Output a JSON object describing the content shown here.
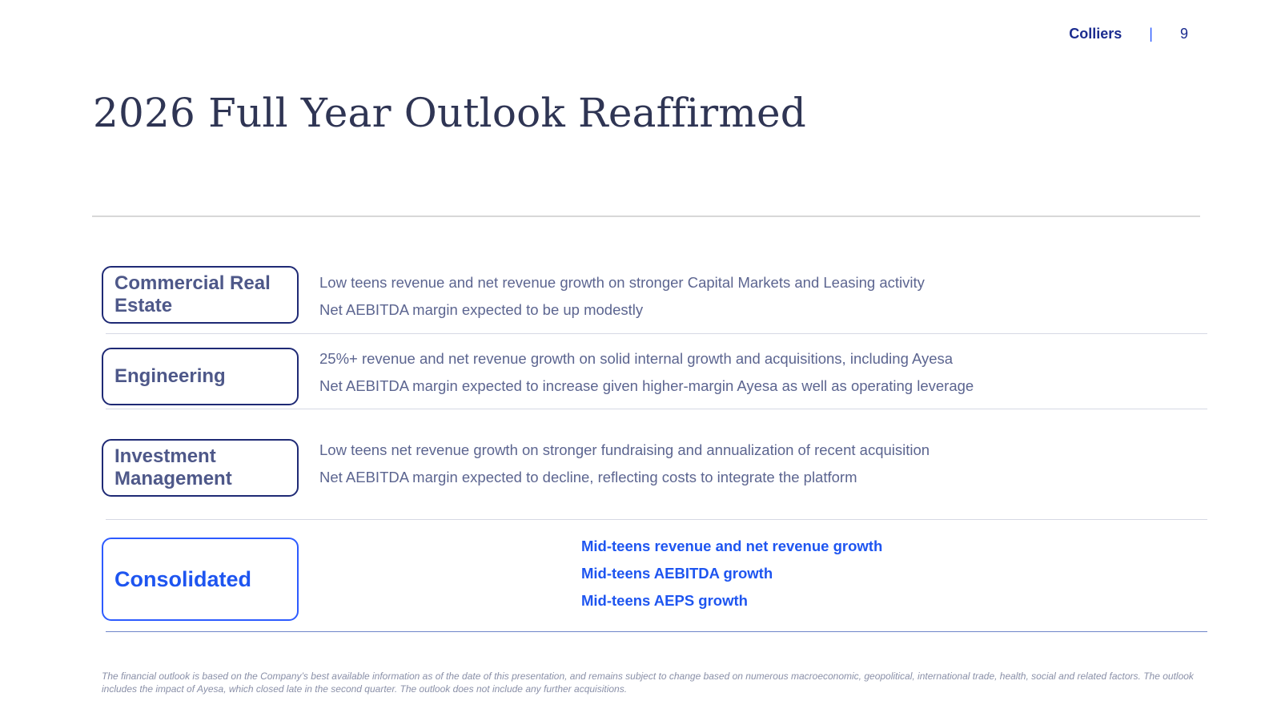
{
  "header": {
    "brand": "Colliers",
    "separator": "|",
    "page_number": "9"
  },
  "title": "2026 Full Year Outlook Reaffirmed",
  "segments": [
    {
      "label": "Commercial Real Estate",
      "lines": [
        "Low teens revenue and net revenue growth on stronger Capital Markets and Leasing activity",
        "Net AEBITDA margin expected to be up modestly"
      ]
    },
    {
      "label": "Engineering",
      "lines": [
        "25%+ revenue and net revenue growth on solid internal growth and acquisitions, including Ayesa",
        "Net AEBITDA margin expected to increase given higher-margin Ayesa as well as operating leverage"
      ]
    },
    {
      "label": "Investment Management",
      "lines": [
        "Low teens net revenue growth on stronger fundraising and annualization of recent acquisition",
        "Net AEBITDA margin expected to decline, reflecting costs to integrate the platform"
      ]
    }
  ],
  "consolidated": {
    "label": "Consolidated",
    "lines": [
      "Mid-teens revenue and net revenue growth",
      "Mid-teens AEBITDA growth",
      "Mid-teens AEPS growth"
    ]
  },
  "footnote": "The financial outlook is based on the Company’s best available information as of the date of this presentation, and remains subject to change based on numerous macroeconomic, geopolitical, international trade, health, social and related factors. The outlook includes the impact of Ayesa, which closed late in the second quarter. The outlook does not include any further acquisitions.",
  "colors": {
    "navy": "#1b2c8f",
    "accent_blue": "#1e55f0",
    "title_text": "#2f3554",
    "body_text": "#5c6590"
  }
}
